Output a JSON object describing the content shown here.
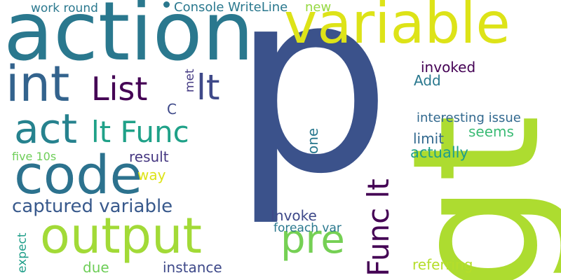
{
  "word_cloud": {
    "background": "#ffffff",
    "words": [
      {
        "text": "p",
        "color": "#3b528b"
      },
      {
        "text": "gt",
        "color": "#addc30"
      },
      {
        "text": "action",
        "color": "#2a788e"
      },
      {
        "text": "variable",
        "color": "#dde318"
      },
      {
        "text": "code",
        "color": "#2c728e"
      },
      {
        "text": "int",
        "color": "#33638d"
      },
      {
        "text": "output",
        "color": "#a2da37"
      },
      {
        "text": "List",
        "color": "#440154"
      },
      {
        "text": "lt",
        "color": "#3e4989"
      },
      {
        "text": "act",
        "color": "#26828e"
      },
      {
        "text": "lt Func",
        "color": "#1fa188"
      },
      {
        "text": "Func lt",
        "color": "#440154"
      },
      {
        "text": "pre",
        "color": "#75d054"
      },
      {
        "text": "captured variable",
        "color": "#38598c"
      },
      {
        "text": "Console WriteLine",
        "color": "#2a788e"
      },
      {
        "text": "work round",
        "color": "#2a788e"
      },
      {
        "text": "new",
        "color": "#95d840"
      },
      {
        "text": "invoked",
        "color": "#440154"
      },
      {
        "text": "Add",
        "color": "#2a788e"
      },
      {
        "text": "met",
        "color": "#443a83"
      },
      {
        "text": "C",
        "color": "#3e4989"
      },
      {
        "text": "interesting issue",
        "color": "#31688e"
      },
      {
        "text": "limit",
        "color": "#31688e"
      },
      {
        "text": "seems",
        "color": "#3bbb75"
      },
      {
        "text": "actually",
        "color": "#1f9e89"
      },
      {
        "text": "one",
        "color": "#2a788e"
      },
      {
        "text": "result",
        "color": "#453781"
      },
      {
        "text": "five 10s",
        "color": "#6ece58"
      },
      {
        "text": "way",
        "color": "#dde318"
      },
      {
        "text": "Invoke",
        "color": "#3e4989"
      },
      {
        "text": "foreach var",
        "color": "#2a788e"
      },
      {
        "text": "expect",
        "color": "#1f9e89"
      },
      {
        "text": "due",
        "color": "#6ece58"
      },
      {
        "text": "instance",
        "color": "#3e4989"
      },
      {
        "text": "referring",
        "color": "#b5de2b"
      }
    ]
  }
}
